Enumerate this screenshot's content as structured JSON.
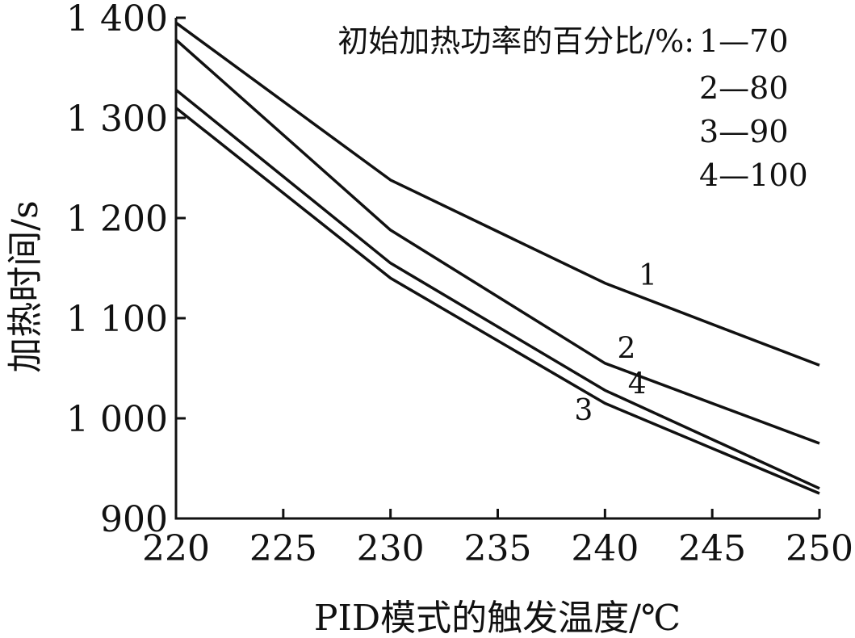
{
  "chart_data": {
    "type": "line",
    "title": "",
    "xlabel": "PID模式的触发温度/℃",
    "ylabel": "加热时间/s",
    "xlim": [
      220,
      250
    ],
    "ylim": [
      900,
      1400
    ],
    "x_ticks": [
      220,
      225,
      230,
      235,
      240,
      245,
      250
    ],
    "x_tick_labels": [
      "220",
      "225",
      "230",
      "235",
      "240",
      "245",
      "250"
    ],
    "y_ticks": [
      900,
      1000,
      1100,
      1200,
      1300,
      1400
    ],
    "y_tick_labels": [
      "900",
      "1 000",
      "1 100",
      "1 200",
      "1 300",
      "1 400"
    ],
    "grid": false,
    "legend": {
      "placement": "top-right",
      "title": "初始加热功率的百分比/%:",
      "entries": [
        "1—70",
        "2—80",
        "3—90",
        "4—100"
      ]
    },
    "x": [
      220,
      230,
      240,
      250
    ],
    "series": [
      {
        "label": "1",
        "values": [
          1395,
          1238,
          1135,
          1053
        ]
      },
      {
        "label": "2",
        "values": [
          1378,
          1188,
          1055,
          975
        ]
      },
      {
        "label": "3",
        "values": [
          1310,
          1140,
          1015,
          925
        ]
      },
      {
        "label": "4",
        "values": [
          1328,
          1155,
          1028,
          930
        ]
      }
    ],
    "series_label_anchor_x": [
      242,
      241,
      239,
      241.5
    ]
  }
}
